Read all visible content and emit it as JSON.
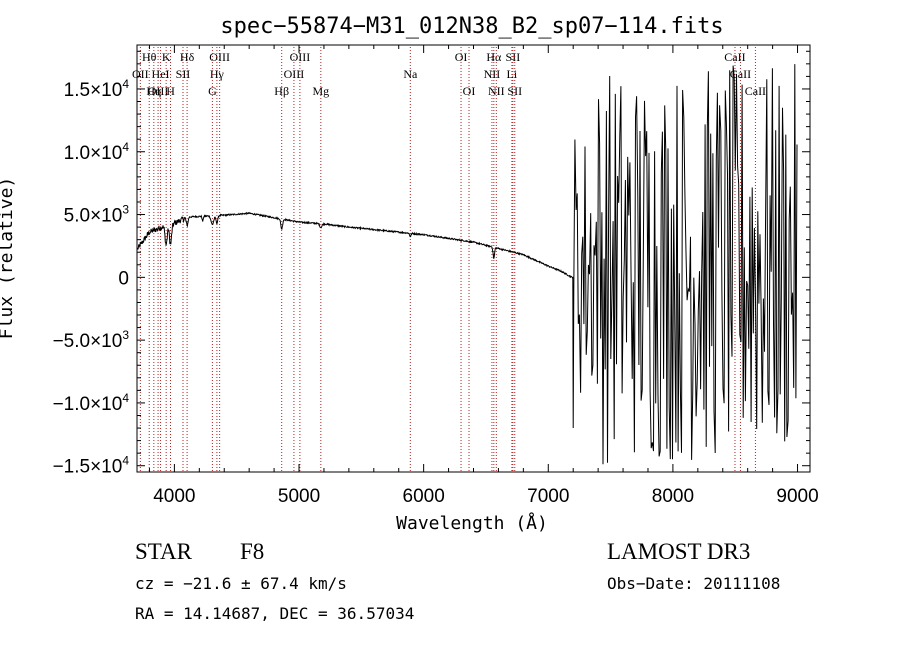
{
  "chart_data": {
    "type": "line",
    "title": "spec−55874−M31_012N38_B2_sp07−114.fits",
    "xlabel": "Wavelength (Å)",
    "ylabel": "Flux (relative)",
    "xlim": [
      3700,
      9100
    ],
    "ylim": [
      -15500,
      18500
    ],
    "x_ticks": [
      4000,
      5000,
      6000,
      7000,
      8000,
      9000
    ],
    "x_tick_labels": [
      "4000",
      "5000",
      "6000",
      "7000",
      "8000",
      "9000"
    ],
    "y_ticks": [
      {
        "value": 15000,
        "mant": "1.5",
        "exp": "4"
      },
      {
        "value": 10000,
        "mant": "1.0",
        "exp": "4"
      },
      {
        "value": 5000,
        "mant": "5.0",
        "exp": "3"
      },
      {
        "value": 0,
        "mant": "0",
        "exp": ""
      },
      {
        "value": -5000,
        "mant": "−5.0",
        "exp": "3"
      },
      {
        "value": -10000,
        "mant": "−1.0",
        "exp": "4"
      },
      {
        "value": -15000,
        "mant": "−1.5",
        "exp": "4"
      }
    ],
    "continuum": [
      [
        3700,
        2200
      ],
      [
        3800,
        3600
      ],
      [
        3900,
        4000
      ],
      [
        4000,
        4300
      ],
      [
        4100,
        4800
      ],
      [
        4200,
        4850
      ],
      [
        4400,
        4950
      ],
      [
        4600,
        5100
      ],
      [
        4800,
        4750
      ],
      [
        5000,
        4400
      ],
      [
        5200,
        4250
      ],
      [
        5400,
        4000
      ],
      [
        5600,
        3800
      ],
      [
        5800,
        3600
      ],
      [
        6000,
        3400
      ],
      [
        6200,
        3100
      ],
      [
        6400,
        2800
      ],
      [
        6600,
        2300
      ],
      [
        6800,
        1800
      ],
      [
        7000,
        900
      ],
      [
        7100,
        500
      ],
      [
        7190,
        0
      ]
    ],
    "absorption_lines": [
      {
        "x": 3934,
        "depth": 1500,
        "width": 12
      },
      {
        "x": 3969,
        "depth": 1600,
        "width": 12
      },
      {
        "x": 4102,
        "depth": 700,
        "width": 10
      },
      {
        "x": 4227,
        "depth": 400,
        "width": 6
      },
      {
        "x": 4305,
        "depth": 700,
        "width": 15
      },
      {
        "x": 4341,
        "depth": 600,
        "width": 10
      },
      {
        "x": 4861,
        "depth": 800,
        "width": 10
      },
      {
        "x": 5175,
        "depth": 300,
        "width": 12
      },
      {
        "x": 5893,
        "depth": 250,
        "width": 8
      },
      {
        "x": 6563,
        "depth": 900,
        "width": 8
      }
    ],
    "noise_region": {
      "start": 7200,
      "end": 9000,
      "amplitude": 16000
    },
    "spectral_lines": [
      {
        "label": "Hθ",
        "x": 3798,
        "row": 1
      },
      {
        "label": "OII",
        "x": 3727,
        "row": 2
      },
      {
        "label": "OIII",
        "x": 3869,
        "row": 3
      },
      {
        "label": "K",
        "x": 3934,
        "row": 1
      },
      {
        "label": "HeI",
        "x": 3889,
        "row": 2
      },
      {
        "label": "Hη",
        "x": 3835,
        "row": 3
      },
      {
        "label": "SII",
        "x": 4069,
        "row": 2
      },
      {
        "label": "H",
        "x": 3969,
        "row": 3
      },
      {
        "label": "Hδ",
        "x": 4102,
        "row": 1
      },
      {
        "label": "OIII",
        "x": 4363,
        "row": 1
      },
      {
        "label": "Hγ",
        "x": 4341,
        "row": 2
      },
      {
        "label": "G",
        "x": 4305,
        "row": 3
      },
      {
        "label": "OIII",
        "x": 5007,
        "row": 1
      },
      {
        "label": "OIII",
        "x": 4959,
        "row": 2
      },
      {
        "label": "Hβ",
        "x": 4861,
        "row": 3
      },
      {
        "label": "Mg",
        "x": 5175,
        "row": 3
      },
      {
        "label": "Na",
        "x": 5893,
        "row": 2
      },
      {
        "label": "OI",
        "x": 6300,
        "row": 1
      },
      {
        "label": "OI",
        "x": 6364,
        "row": 3
      },
      {
        "label": "Hα",
        "x": 6563,
        "row": 1
      },
      {
        "label": "NII",
        "x": 6548,
        "row": 2
      },
      {
        "label": "NII",
        "x": 6583,
        "row": 3
      },
      {
        "label": "SII",
        "x": 6716,
        "row": 1
      },
      {
        "label": "Li",
        "x": 6708,
        "row": 2
      },
      {
        "label": "SII",
        "x": 6731,
        "row": 3
      },
      {
        "label": "CaII",
        "x": 8498,
        "row": 1
      },
      {
        "label": "CaII",
        "x": 8542,
        "row": 2
      },
      {
        "label": "CaII",
        "x": 8662,
        "row": 3
      }
    ]
  },
  "info": {
    "class": "STAR",
    "subclass": "F8",
    "survey": "LAMOST DR3",
    "redshift": "cz = −21.6 ± 67.4 km/s",
    "obs_date": "Obs−Date: 20111108",
    "coords": "RA =  14.14687, DEC =  36.57034"
  }
}
